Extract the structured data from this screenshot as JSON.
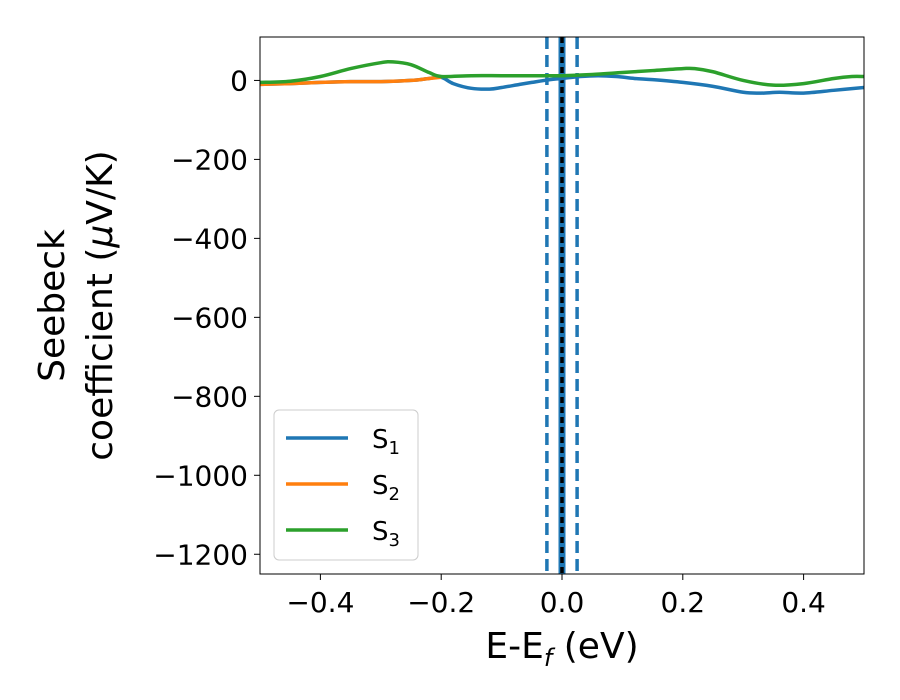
{
  "chart_data": {
    "type": "line",
    "xlabel": "E-E",
    "xlabel_sub": "f",
    "xlabel_unit": " (eV)",
    "ylabel_line1": "Seebeck",
    "ylabel_line2_pre": "coefficient  (",
    "ylabel_mu": "μ",
    "ylabel_line2_post": "V/K)",
    "xlim": [
      -0.5,
      0.5
    ],
    "ylim": [
      -1250,
      110
    ],
    "xticks": [
      -0.4,
      -0.2,
      0.0,
      0.2,
      0.4
    ],
    "xtick_labels": [
      "−0.4",
      "−0.2",
      "0.0",
      "0.2",
      "0.4"
    ],
    "yticks": [
      0,
      -200,
      -400,
      -600,
      -800,
      -1000,
      -1200
    ],
    "ytick_labels": [
      "0",
      "−200",
      "−400",
      "−600",
      "−800",
      "−1000",
      "−1200"
    ],
    "legend_position": "lower-left",
    "series": [
      {
        "name": "S",
        "sub": "1",
        "color": "#1f77b4",
        "x": [
          -0.5,
          -0.45,
          -0.4,
          -0.35,
          -0.3,
          -0.25,
          -0.22,
          -0.2,
          -0.18,
          -0.15,
          -0.12,
          -0.1,
          -0.07,
          -0.05,
          -0.02,
          0.0,
          0.03,
          0.06,
          0.09,
          0.12,
          0.15,
          0.2,
          0.25,
          0.3,
          0.33,
          0.36,
          0.4,
          0.45,
          0.5
        ],
        "y": [
          -10,
          -8,
          -5,
          -3,
          -3,
          0,
          5,
          8,
          -8,
          -20,
          -22,
          -18,
          -10,
          -5,
          2,
          5,
          10,
          12,
          10,
          5,
          2,
          -5,
          -15,
          -30,
          -32,
          -30,
          -32,
          -25,
          -18
        ]
      },
      {
        "name": "S",
        "sub": "2",
        "color": "#ff7f0e",
        "x": [
          -0.5,
          -0.45,
          -0.4,
          -0.35,
          -0.3,
          -0.25,
          -0.22,
          -0.2
        ],
        "y": [
          -10,
          -8,
          -5,
          -3,
          -3,
          0,
          5,
          8
        ]
      },
      {
        "name": "S",
        "sub": "3",
        "color": "#2ca02c",
        "x": [
          -0.5,
          -0.45,
          -0.4,
          -0.35,
          -0.3,
          -0.28,
          -0.25,
          -0.22,
          -0.2,
          -0.15,
          -0.1,
          -0.05,
          0.0,
          0.05,
          0.1,
          0.15,
          0.2,
          0.22,
          0.25,
          0.3,
          0.35,
          0.4,
          0.45,
          0.48,
          0.5
        ],
        "y": [
          -5,
          -2,
          10,
          30,
          45,
          47,
          40,
          20,
          10,
          12,
          12,
          12,
          12,
          15,
          20,
          25,
          30,
          30,
          22,
          0,
          -12,
          -8,
          5,
          10,
          10
        ]
      }
    ],
    "vlines": [
      {
        "x": -0.025,
        "color": "#1f77b4",
        "style": "dashed"
      },
      {
        "x": 0.0,
        "color": "#1f77b4",
        "style": "solid-thick"
      },
      {
        "x": 0.0,
        "color": "#000000",
        "style": "dotted"
      },
      {
        "x": 0.025,
        "color": "#1f77b4",
        "style": "dashed"
      }
    ]
  }
}
